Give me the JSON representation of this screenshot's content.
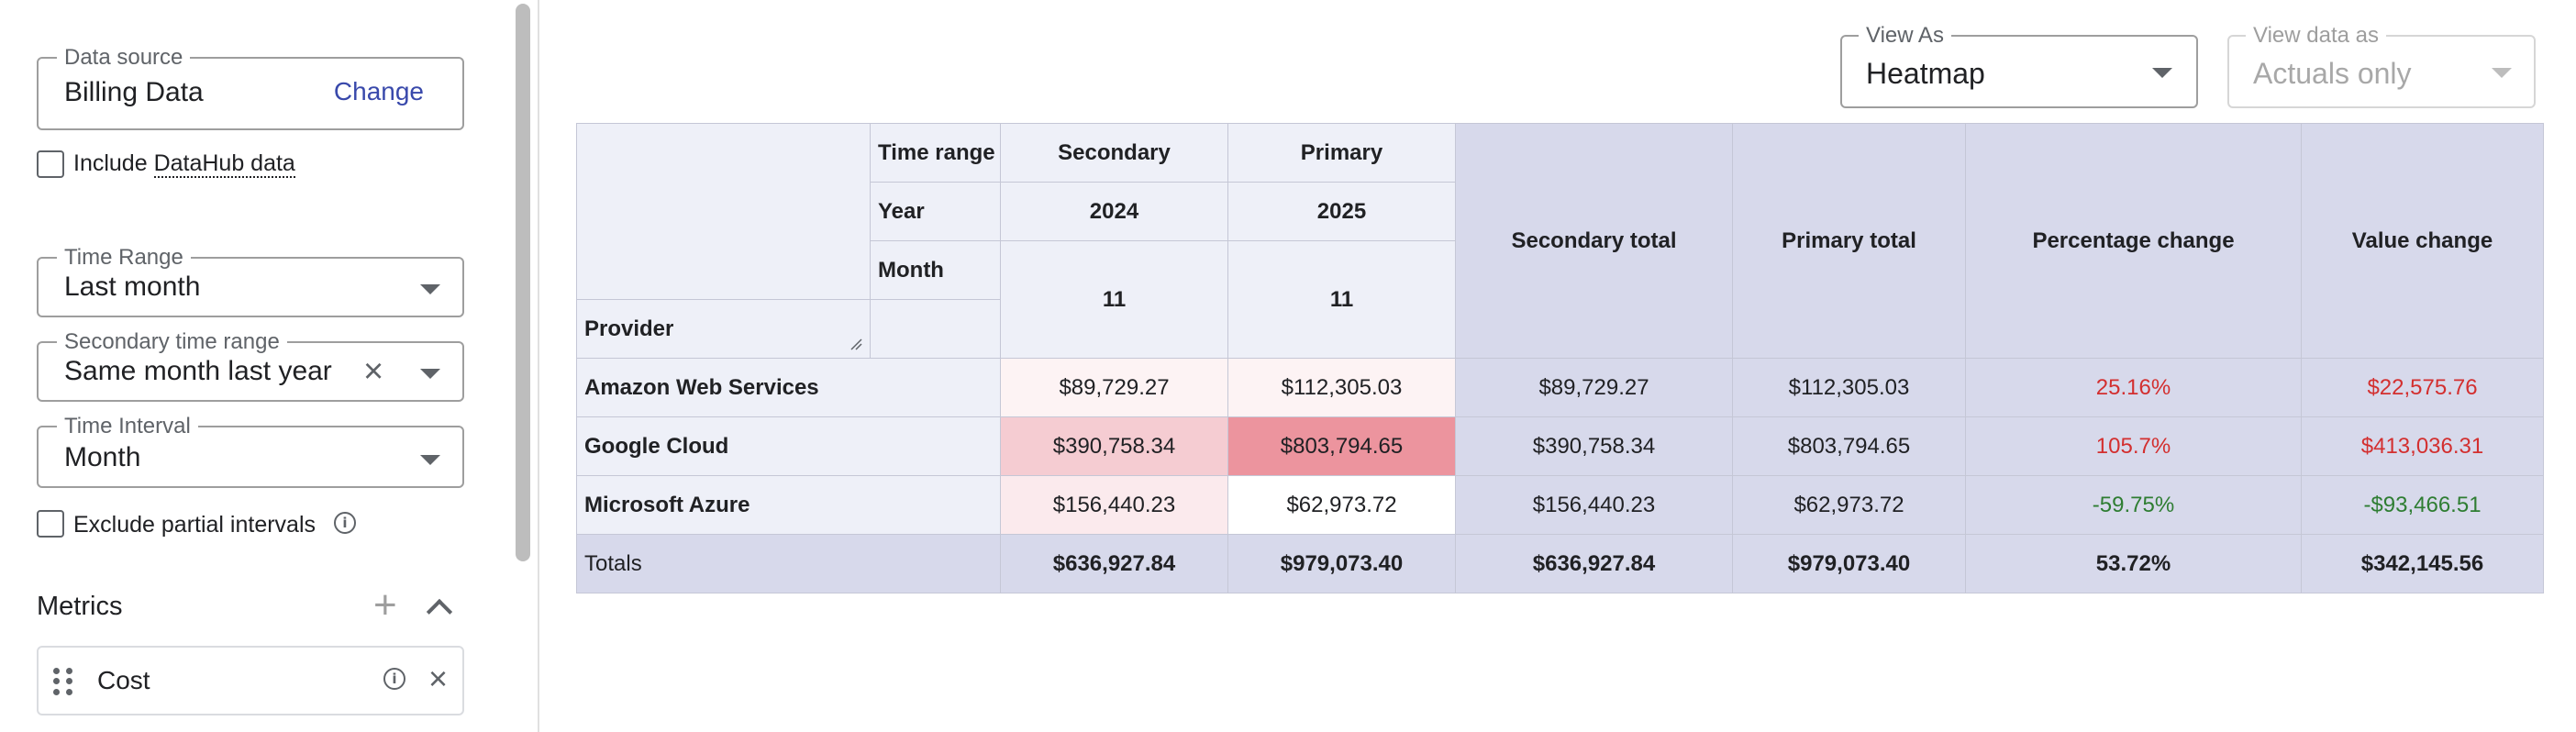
{
  "sidebar": {
    "data_source": {
      "label": "Data source",
      "value": "Billing Data",
      "action": "Change"
    },
    "include_datahub": {
      "prefix": "Include ",
      "link": "DataHub data",
      "checked": false
    },
    "time_range": {
      "label": "Time Range",
      "value": "Last month"
    },
    "secondary_time_range": {
      "label": "Secondary time range",
      "value": "Same month last year"
    },
    "time_interval": {
      "label": "Time Interval",
      "value": "Month"
    },
    "exclude_partial": {
      "label": "Exclude partial intervals",
      "checked": false
    },
    "metrics": {
      "title": "Metrics",
      "items": [
        {
          "name": "Cost"
        }
      ]
    }
  },
  "toolbar": {
    "view_as": {
      "label": "View As",
      "value": "Heatmap"
    },
    "view_data_as": {
      "label": "View data as",
      "value": "Actuals only"
    }
  },
  "table": {
    "row_field": "Provider",
    "header_labels": {
      "time_range": "Time range",
      "year": "Year",
      "month": "Month"
    },
    "columns": [
      {
        "time_range": "Secondary",
        "year": "2024",
        "month": "11"
      },
      {
        "time_range": "Primary",
        "year": "2025",
        "month": "11"
      }
    ],
    "summary_headers": [
      "Secondary total",
      "Primary total",
      "Percentage change",
      "Value change"
    ],
    "rows": [
      {
        "provider": "Amazon Web Services",
        "secondary": "$89,729.27",
        "primary": "$112,305.03",
        "secondary_total": "$89,729.27",
        "primary_total": "$112,305.03",
        "pct_change": "25.16%",
        "value_change": "$22,575.76"
      },
      {
        "provider": "Google Cloud",
        "secondary": "$390,758.34",
        "primary": "$803,794.65",
        "secondary_total": "$390,758.34",
        "primary_total": "$803,794.65",
        "pct_change": "105.7%",
        "value_change": "$413,036.31"
      },
      {
        "provider": "Microsoft Azure",
        "secondary": "$156,440.23",
        "primary": "$62,973.72",
        "secondary_total": "$156,440.23",
        "primary_total": "$62,973.72",
        "pct_change": "-59.75%",
        "value_change": "-$93,466.51"
      }
    ],
    "totals": {
      "label": "Totals",
      "secondary": "$636,927.84",
      "primary": "$979,073.40",
      "secondary_total": "$636,927.84",
      "primary_total": "$979,073.40",
      "pct_change": "53.72%",
      "value_change": "$342,145.56"
    }
  },
  "colors": {
    "accent": "#3949ab",
    "heat_low": "#fdf3f4",
    "heat_mid": "#f5ccd2",
    "heat_high": "#ec949e",
    "positive_change": "#d32f2f",
    "negative_change": "#2e7d32"
  }
}
